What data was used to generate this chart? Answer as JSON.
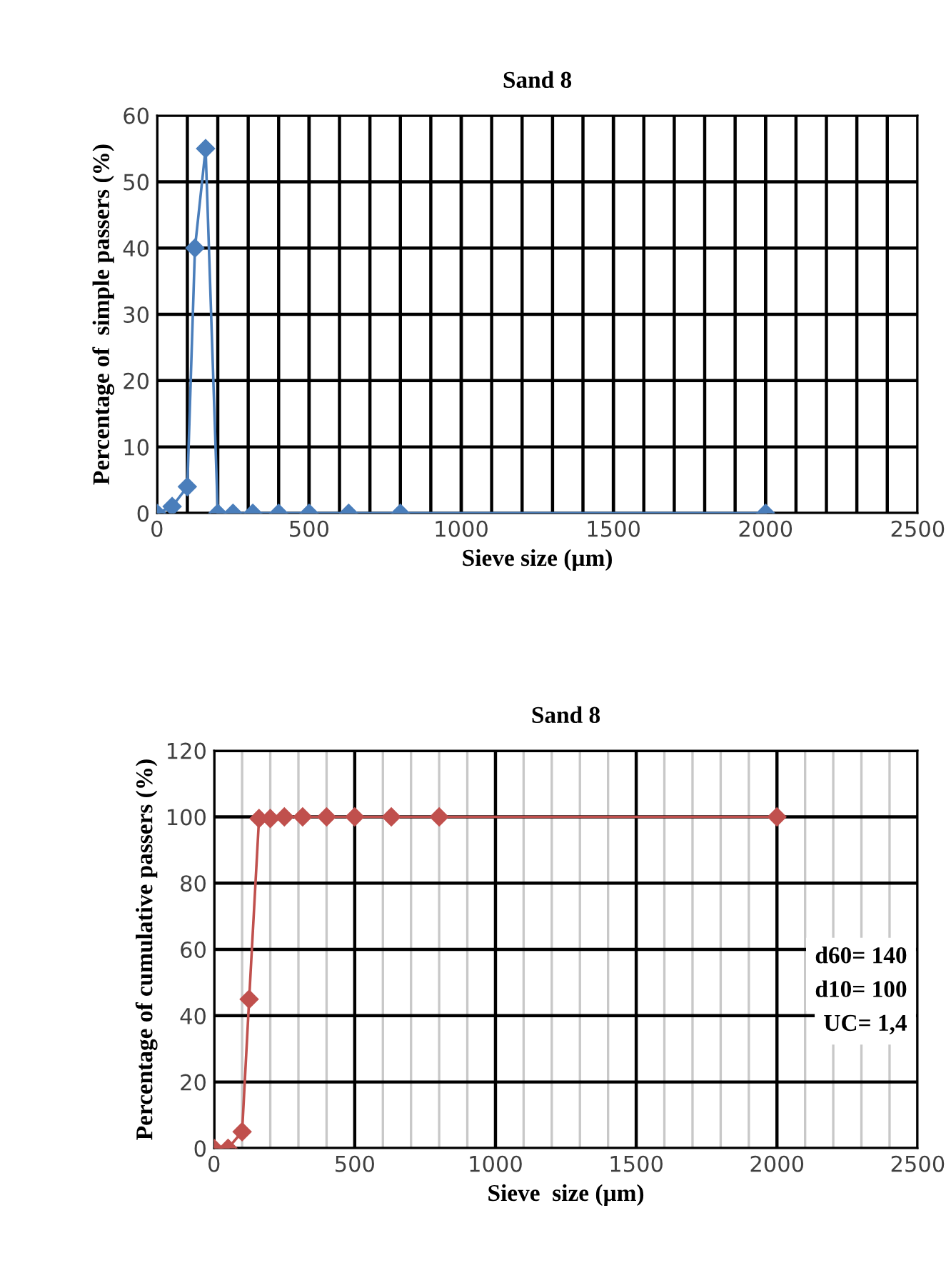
{
  "chart_data": [
    {
      "type": "line",
      "title": "Sand 8",
      "xlabel": "Sieve size (µm)",
      "ylabel": "Percentage of  simple passers (%)",
      "x": [
        0,
        50,
        100,
        125,
        160,
        200,
        250,
        315,
        400,
        500,
        630,
        800,
        2000
      ],
      "series": [
        {
          "color": "#4a7ebb",
          "values": [
            0,
            1,
            4,
            40,
            55,
            0,
            0,
            0,
            0,
            0,
            0,
            0,
            0
          ]
        }
      ],
      "xlim": [
        0,
        2500
      ],
      "xticks": [
        0,
        500,
        1000,
        1500,
        2000,
        2500
      ],
      "ylim": [
        0,
        60
      ],
      "yticks": [
        0,
        10,
        20,
        30,
        40,
        50,
        60
      ],
      "grid": true,
      "marker": "diamond",
      "line_style": "solid"
    },
    {
      "type": "line",
      "title": "Sand 8",
      "xlabel": "Sieve  size (µm)",
      "ylabel": "Percentage of cumulative passers (%)",
      "x": [
        0,
        50,
        100,
        125,
        160,
        200,
        250,
        315,
        400,
        500,
        630,
        800,
        2000
      ],
      "series": [
        {
          "color": "#c0504d",
          "values": [
            0,
            0,
            5,
            45,
            99.5,
            99.5,
            100,
            100,
            100,
            100,
            100,
            100,
            100
          ]
        }
      ],
      "xlim": [
        0,
        2500
      ],
      "xticks": [
        0,
        500,
        1000,
        1500,
        2000,
        2500
      ],
      "ylim": [
        0,
        120
      ],
      "yticks": [
        0,
        20,
        40,
        60,
        80,
        100,
        120
      ],
      "grid": true,
      "marker": "diamond",
      "line_style": "solid",
      "annotations": [
        "d60= 140",
        "d10= 100",
        "UC= 1,4"
      ]
    }
  ]
}
